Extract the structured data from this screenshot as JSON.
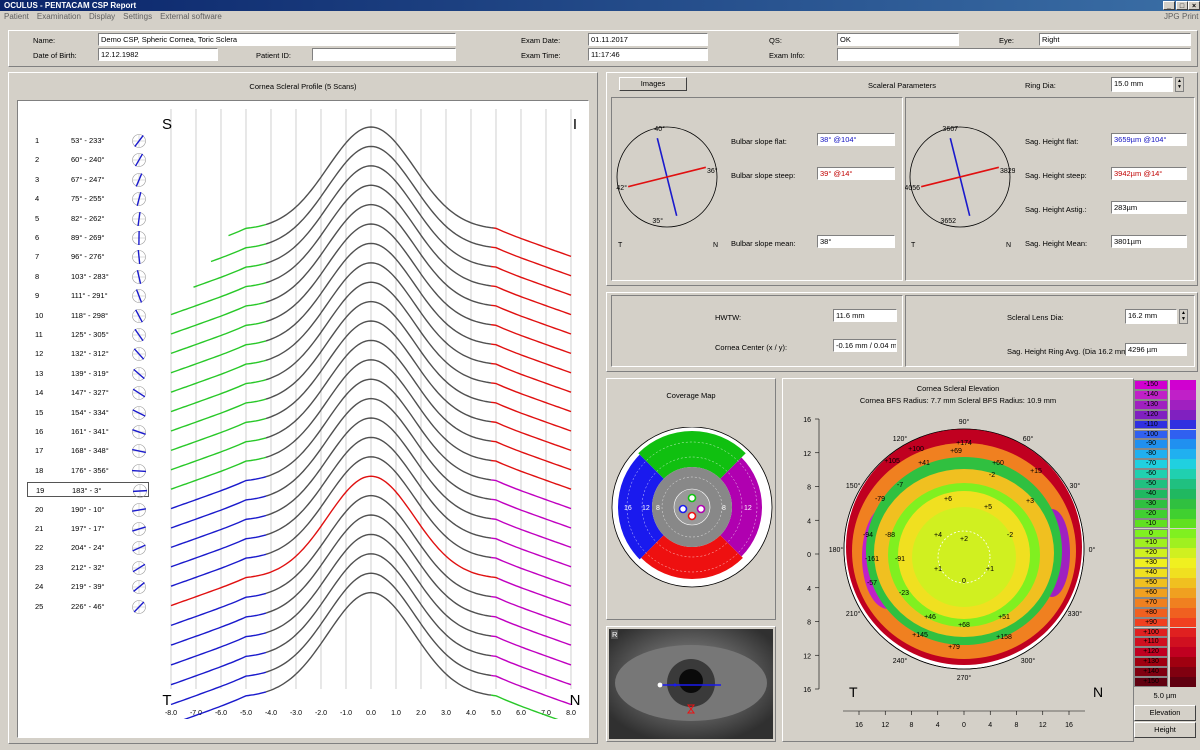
{
  "window": {
    "title": "OCULUS - PENTACAM  CSP Report"
  },
  "menu": [
    "Patient",
    "Examination",
    "Display",
    "Settings",
    "External software"
  ],
  "menu_right": [
    "JPG",
    "Print"
  ],
  "header": {
    "name_label": "Name:",
    "name": "Demo CSP, Spheric Cornea, Toric Sclera",
    "dob_label": "Date of Birth:",
    "dob": "12.12.1982",
    "patient_id_label": "Patient ID:",
    "patient_id": "",
    "exam_date_label": "Exam Date:",
    "exam_date": "01.11.2017",
    "exam_time_label": "Exam Time:",
    "exam_time": "11:17:46",
    "qs_label": "QS:",
    "qs": "OK",
    "exam_info_label": "Exam Info:",
    "exam_info": "",
    "eye_label": "Eye:",
    "eye": "Right"
  },
  "profile": {
    "title": "Cornea Scleral Profile (5 Scans)",
    "corner_tl": "S",
    "corner_tr": "I",
    "corner_bl": "T",
    "corner_br": "N",
    "scans": [
      {
        "n": "1",
        "range": "53° - 233°"
      },
      {
        "n": "2",
        "range": "60° - 240°"
      },
      {
        "n": "3",
        "range": "67° - 247°"
      },
      {
        "n": "4",
        "range": "75° - 255°"
      },
      {
        "n": "5",
        "range": "82° - 262°"
      },
      {
        "n": "6",
        "range": "89° - 269°"
      },
      {
        "n": "7",
        "range": "96° - 276°"
      },
      {
        "n": "8",
        "range": "103° - 283°"
      },
      {
        "n": "9",
        "range": "111° - 291°"
      },
      {
        "n": "10",
        "range": "118° - 298°"
      },
      {
        "n": "11",
        "range": "125° - 305°"
      },
      {
        "n": "12",
        "range": "132° - 312°"
      },
      {
        "n": "13",
        "range": "139° - 319°"
      },
      {
        "n": "14",
        "range": "147° - 327°"
      },
      {
        "n": "15",
        "range": "154° - 334°"
      },
      {
        "n": "16",
        "range": "161° - 341°"
      },
      {
        "n": "17",
        "range": "168° - 348°"
      },
      {
        "n": "18",
        "range": "176° - 356°"
      },
      {
        "n": "19",
        "range": "183° - 3°"
      },
      {
        "n": "20",
        "range": "190° - 10°"
      },
      {
        "n": "21",
        "range": "197° - 17°"
      },
      {
        "n": "22",
        "range": "204° - 24°"
      },
      {
        "n": "23",
        "range": "212° - 32°"
      },
      {
        "n": "24",
        "range": "219° - 39°"
      },
      {
        "n": "25",
        "range": "226° - 46°"
      }
    ],
    "selected_scan": "19",
    "x_ticks": [
      "-8.0",
      "-7.0",
      "-6.0",
      "-5.0",
      "-4.0",
      "-3.0",
      "-2.0",
      "-1.0",
      "0.0",
      "1.0",
      "2.0",
      "3.0",
      "4.0",
      "5.0",
      "6.0",
      "7.0",
      "8.0"
    ],
    "colors": {
      "mid": "#505050",
      "green": "#28c828",
      "blue": "#1a1acc",
      "red": "#e01010",
      "magenta": "#c000c0"
    }
  },
  "scleral": {
    "images_button": "Images",
    "title": "Scaleral Parameters",
    "ring_dia_label": "Ring Dia:",
    "ring_dia": "15.0 mm",
    "left_dial": {
      "top": "40°",
      "right": "36°",
      "left": "42°",
      "bottom": "35°",
      "t": "T",
      "n": "N"
    },
    "right_dial": {
      "top": "3667",
      "right": "3829",
      "left": "4056",
      "bottom": "3652",
      "t": "T",
      "n": "N"
    },
    "bulbar_flat_label": "Bulbar slope flat:",
    "bulbar_flat": "38° @104°",
    "bulbar_steep_label": "Bulbar slope steep:",
    "bulbar_steep": "39° @14°",
    "bulbar_mean_label": "Bulbar slope mean:",
    "bulbar_mean": "38°",
    "sag_flat_label": "Sag. Height flat:",
    "sag_flat": "3659µm @104°",
    "sag_steep_label": "Sag. Height steep:",
    "sag_steep": "3942µm @14°",
    "sag_astig_label": "Sag. Height Astig.:",
    "sag_astig": "283µm",
    "sag_mean_label": "Sag. Height Mean:",
    "sag_mean": "3801µm"
  },
  "lens": {
    "hwtw_label": "HWTW:",
    "hwtw": "11.6 mm",
    "center_label": "Cornea Center (x / y):",
    "center": "-0.16 mm / 0.04 mm",
    "sld_label": "Scleral Lens Dia:",
    "sld": "16.2 mm",
    "shr_label": "Sag. Height Ring Avg. (Dia 16.2 mm):",
    "shr": "4296 µm"
  },
  "coverage": {
    "title": "Coverage Map",
    "labels_left": [
      "16",
      "12",
      "8"
    ],
    "labels_right": [
      "8",
      "12"
    ]
  },
  "camera": {
    "label": "R"
  },
  "elevation": {
    "title": "Cornea Scleral Elevation",
    "subtitle": "Cornea BFS Radius: 7.7 mm    Scleral BFS Radius: 10.9 mm",
    "y_ticks": [
      "16",
      "12",
      "8",
      "4",
      "0",
      "4",
      "8",
      "12",
      "16"
    ],
    "x_ticks": [
      "16",
      "12",
      "8",
      "4",
      "0",
      "4",
      "8",
      "12",
      "16"
    ],
    "corner_t": "T",
    "corner_n": "N",
    "angle_labels": [
      "90°",
      "60°",
      "30°",
      "0°",
      "330°",
      "300°",
      "270°",
      "240°",
      "210°",
      "180°",
      "150°",
      "120°"
    ],
    "map_values": [
      {
        "v": "+174"
      },
      {
        "v": "+100"
      },
      {
        "v": "+69"
      },
      {
        "v": "+105"
      },
      {
        "v": "+41"
      },
      {
        "v": "+60"
      },
      {
        "v": "+15"
      },
      {
        "v": "-7"
      },
      {
        "v": "-2"
      },
      {
        "v": "-79"
      },
      {
        "v": "+6"
      },
      {
        "v": "+5"
      },
      {
        "v": "+3"
      },
      {
        "v": "-94"
      },
      {
        "v": "-88"
      },
      {
        "v": "+4"
      },
      {
        "v": "+2"
      },
      {
        "v": "-2"
      },
      {
        "v": "-161"
      },
      {
        "v": "-91"
      },
      {
        "v": "+1"
      },
      {
        "v": "0"
      },
      {
        "v": "+1"
      },
      {
        "v": "-57"
      },
      {
        "v": "-23"
      },
      {
        "v": "+46"
      },
      {
        "v": "+51"
      },
      {
        "v": "+68"
      },
      {
        "v": "+145"
      },
      {
        "v": "+158"
      },
      {
        "v": "+79"
      }
    ]
  },
  "scale": {
    "entries": [
      "-150",
      "-140",
      "-130",
      "-120",
      "-110",
      "-100",
      "-90",
      "-80",
      "-70",
      "-60",
      "-50",
      "-40",
      "-30",
      "-20",
      "-10",
      "0",
      "+10",
      "+20",
      "+30",
      "+40",
      "+50",
      "+60",
      "+70",
      "+80",
      "+90",
      "+100",
      "+110",
      "+120",
      "+130",
      "+140",
      "+150"
    ],
    "colors": [
      "#d000d0",
      "#c020c8",
      "#a020c0",
      "#8020c0",
      "#3030e0",
      "#3060f0",
      "#2090f0",
      "#20b0f0",
      "#20d0e0",
      "#20d0b0",
      "#20c080",
      "#20b860",
      "#30c040",
      "#40d030",
      "#60e020",
      "#80f020",
      "#a0f020",
      "#d0f020",
      "#f0f020",
      "#f0e020",
      "#f0c020",
      "#f0a020",
      "#f08020",
      "#f06020",
      "#f04020",
      "#e02020",
      "#d01020",
      "#c00020",
      "#a00010",
      "#800010",
      "#600010"
    ],
    "step": "5.0 µm",
    "tab_elev": "Elevation",
    "tab_height": "Height"
  }
}
